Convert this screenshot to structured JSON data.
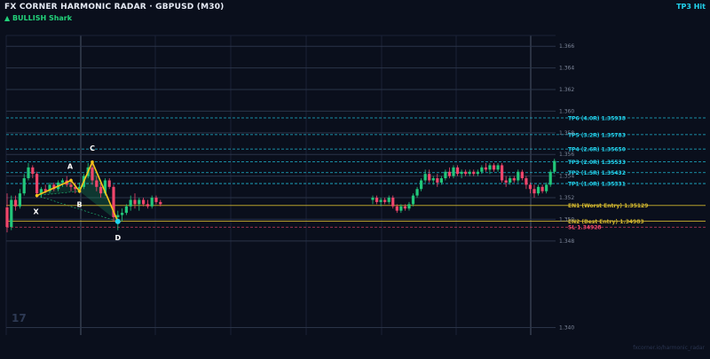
{
  "header": {
    "title": "FX CORNER HARMONIC RADAR  ·  GBPUSD (M30)",
    "pattern": "▲ BULLISH  Shark",
    "status": "TP3 Hit"
  },
  "watermark": "17",
  "footer": "fxcorner.io/harmonic_radar",
  "colors": {
    "background": "#0a0f1c",
    "bull": "#22c77a",
    "bear": "#f0456b",
    "pattern": "#f5c518",
    "tp": "#22d3ee",
    "entry": "#d4b82e",
    "sl": "#f0456b"
  },
  "chart_data": {
    "type": "candlestick",
    "symbol": "GBPUSD",
    "timeframe": "M30",
    "ylim": [
      1.3393,
      1.367
    ],
    "y_ticks": [
      "1.366",
      "1.364",
      "1.362",
      "1.360",
      "1.358",
      "1.356",
      "1.354",
      "1.352",
      "1.350",
      "1.348",
      "1.340"
    ],
    "levels": [
      {
        "label": "TP6 (4.0R)  1.35938",
        "value": 1.35938,
        "kind": "tp"
      },
      {
        "label": "TP5 (3.2R)  1.35783",
        "value": 1.35783,
        "kind": "tp"
      },
      {
        "label": "TP4 (2.6R)  1.35650",
        "value": 1.3565,
        "kind": "tp"
      },
      {
        "label": "TP3 (2.0R)  1.35533",
        "value": 1.35533,
        "kind": "tp"
      },
      {
        "label": "TP2 (1.5R)  1.35432",
        "value": 1.35432,
        "kind": "tp"
      },
      {
        "label": "TP1 (1.0R)  1.35331",
        "value": 1.35331,
        "kind": "tp"
      },
      {
        "label": "EN1 (Worst Entry)  1.35129",
        "value": 1.35129,
        "kind": "entry"
      },
      {
        "label": "EN2 (Best Entry)  1.34983",
        "value": 1.34983,
        "kind": "entry"
      },
      {
        "label": "SL  1.34928",
        "value": 1.34928,
        "kind": "sl"
      }
    ],
    "pattern_points": [
      {
        "label": "X",
        "index": 7,
        "value": 1.3522
      },
      {
        "label": "A",
        "index": 15,
        "value": 1.3536
      },
      {
        "label": "B",
        "index": 17,
        "value": 1.3526
      },
      {
        "label": "C",
        "index": 20,
        "value": 1.3553
      },
      {
        "label": "D",
        "index": 26,
        "value": 1.3498
      }
    ],
    "candles": [
      {
        "i": 0,
        "o": 1.3511,
        "h": 1.3524,
        "l": 1.3488,
        "c": 1.3493
      },
      {
        "i": 1,
        "o": 1.3493,
        "h": 1.3522,
        "l": 1.349,
        "c": 1.3518
      },
      {
        "i": 2,
        "o": 1.3518,
        "h": 1.3522,
        "l": 1.3508,
        "c": 1.3512
      },
      {
        "i": 3,
        "o": 1.3512,
        "h": 1.3528,
        "l": 1.351,
        "c": 1.3524
      },
      {
        "i": 4,
        "o": 1.3524,
        "h": 1.3542,
        "l": 1.3522,
        "c": 1.3538
      },
      {
        "i": 5,
        "o": 1.3538,
        "h": 1.3552,
        "l": 1.3536,
        "c": 1.3548
      },
      {
        "i": 6,
        "o": 1.3548,
        "h": 1.355,
        "l": 1.3538,
        "c": 1.3542
      },
      {
        "i": 7,
        "o": 1.3542,
        "h": 1.3544,
        "l": 1.352,
        "c": 1.3524
      },
      {
        "i": 8,
        "o": 1.3524,
        "h": 1.353,
        "l": 1.352,
        "c": 1.3528
      },
      {
        "i": 9,
        "o": 1.3528,
        "h": 1.3532,
        "l": 1.3524,
        "c": 1.3526
      },
      {
        "i": 10,
        "o": 1.3526,
        "h": 1.3534,
        "l": 1.3524,
        "c": 1.3532
      },
      {
        "i": 11,
        "o": 1.3532,
        "h": 1.3534,
        "l": 1.3526,
        "c": 1.3528
      },
      {
        "i": 12,
        "o": 1.3528,
        "h": 1.3536,
        "l": 1.3526,
        "c": 1.3534
      },
      {
        "i": 13,
        "o": 1.3534,
        "h": 1.3538,
        "l": 1.353,
        "c": 1.3536
      },
      {
        "i": 14,
        "o": 1.3536,
        "h": 1.354,
        "l": 1.353,
        "c": 1.3532
      },
      {
        "i": 15,
        "o": 1.3532,
        "h": 1.3538,
        "l": 1.3526,
        "c": 1.353
      },
      {
        "i": 16,
        "o": 1.353,
        "h": 1.3534,
        "l": 1.3524,
        "c": 1.3528
      },
      {
        "i": 17,
        "o": 1.3528,
        "h": 1.3534,
        "l": 1.3524,
        "c": 1.353
      },
      {
        "i": 18,
        "o": 1.353,
        "h": 1.3542,
        "l": 1.3528,
        "c": 1.354
      },
      {
        "i": 19,
        "o": 1.354,
        "h": 1.3552,
        "l": 1.3538,
        "c": 1.3548
      },
      {
        "i": 20,
        "o": 1.3548,
        "h": 1.3554,
        "l": 1.3532,
        "c": 1.3536
      },
      {
        "i": 21,
        "o": 1.3536,
        "h": 1.354,
        "l": 1.3526,
        "c": 1.353
      },
      {
        "i": 22,
        "o": 1.353,
        "h": 1.3534,
        "l": 1.352,
        "c": 1.3524
      },
      {
        "i": 23,
        "o": 1.3524,
        "h": 1.3538,
        "l": 1.3522,
        "c": 1.3536
      },
      {
        "i": 24,
        "o": 1.3536,
        "h": 1.3538,
        "l": 1.3528,
        "c": 1.353
      },
      {
        "i": 25,
        "o": 1.353,
        "h": 1.3532,
        "l": 1.3498,
        "c": 1.3502
      },
      {
        "i": 26,
        "o": 1.3502,
        "h": 1.3508,
        "l": 1.349,
        "c": 1.3504
      },
      {
        "i": 27,
        "o": 1.3504,
        "h": 1.351,
        "l": 1.3498,
        "c": 1.3506
      },
      {
        "i": 28,
        "o": 1.3506,
        "h": 1.3514,
        "l": 1.3504,
        "c": 1.3512
      },
      {
        "i": 29,
        "o": 1.3512,
        "h": 1.3522,
        "l": 1.3508,
        "c": 1.3518
      },
      {
        "i": 30,
        "o": 1.3518,
        "h": 1.3524,
        "l": 1.351,
        "c": 1.3514
      },
      {
        "i": 31,
        "o": 1.3514,
        "h": 1.352,
        "l": 1.3508,
        "c": 1.3518
      },
      {
        "i": 32,
        "o": 1.3518,
        "h": 1.352,
        "l": 1.3512,
        "c": 1.3514
      },
      {
        "i": 33,
        "o": 1.3514,
        "h": 1.3518,
        "l": 1.351,
        "c": 1.3512
      },
      {
        "i": 34,
        "o": 1.3512,
        "h": 1.3522,
        "l": 1.351,
        "c": 1.352
      },
      {
        "i": 35,
        "o": 1.352,
        "h": 1.3522,
        "l": 1.3514,
        "c": 1.3516
      },
      {
        "i": 36,
        "o": 1.3516,
        "h": 1.3518,
        "l": 1.3512,
        "c": 1.3514
      },
      {
        "i": 100,
        "o": 1.3518,
        "h": 1.3522,
        "l": 1.3514,
        "c": 1.352
      },
      {
        "i": 101,
        "o": 1.352,
        "h": 1.3522,
        "l": 1.3514,
        "c": 1.3516
      },
      {
        "i": 102,
        "o": 1.3516,
        "h": 1.352,
        "l": 1.3512,
        "c": 1.3518
      },
      {
        "i": 103,
        "o": 1.3518,
        "h": 1.352,
        "l": 1.3514,
        "c": 1.3516
      },
      {
        "i": 104,
        "o": 1.3516,
        "h": 1.3522,
        "l": 1.3514,
        "c": 1.352
      },
      {
        "i": 105,
        "o": 1.352,
        "h": 1.3522,
        "l": 1.351,
        "c": 1.3512
      },
      {
        "i": 106,
        "o": 1.3512,
        "h": 1.3514,
        "l": 1.3506,
        "c": 1.3508
      },
      {
        "i": 107,
        "o": 1.3508,
        "h": 1.3514,
        "l": 1.3506,
        "c": 1.3512
      },
      {
        "i": 108,
        "o": 1.3512,
        "h": 1.3514,
        "l": 1.3508,
        "c": 1.351
      },
      {
        "i": 109,
        "o": 1.351,
        "h": 1.3516,
        "l": 1.3508,
        "c": 1.3514
      },
      {
        "i": 110,
        "o": 1.3514,
        "h": 1.3524,
        "l": 1.3512,
        "c": 1.3522
      },
      {
        "i": 111,
        "o": 1.3522,
        "h": 1.353,
        "l": 1.352,
        "c": 1.3528
      },
      {
        "i": 112,
        "o": 1.3528,
        "h": 1.3538,
        "l": 1.3526,
        "c": 1.3536
      },
      {
        "i": 113,
        "o": 1.3536,
        "h": 1.3546,
        "l": 1.3534,
        "c": 1.3542
      },
      {
        "i": 114,
        "o": 1.3542,
        "h": 1.3546,
        "l": 1.3534,
        "c": 1.3536
      },
      {
        "i": 115,
        "o": 1.3536,
        "h": 1.354,
        "l": 1.3532,
        "c": 1.3538
      },
      {
        "i": 116,
        "o": 1.3538,
        "h": 1.3542,
        "l": 1.353,
        "c": 1.3534
      },
      {
        "i": 117,
        "o": 1.3534,
        "h": 1.354,
        "l": 1.3532,
        "c": 1.3538
      },
      {
        "i": 118,
        "o": 1.3538,
        "h": 1.3546,
        "l": 1.3536,
        "c": 1.3544
      },
      {
        "i": 119,
        "o": 1.3544,
        "h": 1.3548,
        "l": 1.3538,
        "c": 1.354
      },
      {
        "i": 120,
        "o": 1.354,
        "h": 1.355,
        "l": 1.3538,
        "c": 1.3548
      },
      {
        "i": 121,
        "o": 1.3548,
        "h": 1.355,
        "l": 1.354,
        "c": 1.3542
      },
      {
        "i": 122,
        "o": 1.3542,
        "h": 1.3546,
        "l": 1.3538,
        "c": 1.3544
      },
      {
        "i": 123,
        "o": 1.3544,
        "h": 1.3546,
        "l": 1.354,
        "c": 1.3542
      },
      {
        "i": 124,
        "o": 1.3542,
        "h": 1.3546,
        "l": 1.354,
        "c": 1.3544
      },
      {
        "i": 125,
        "o": 1.3544,
        "h": 1.3546,
        "l": 1.354,
        "c": 1.3542
      },
      {
        "i": 126,
        "o": 1.3542,
        "h": 1.3546,
        "l": 1.354,
        "c": 1.3544
      },
      {
        "i": 127,
        "o": 1.3544,
        "h": 1.355,
        "l": 1.3542,
        "c": 1.3548
      },
      {
        "i": 128,
        "o": 1.3548,
        "h": 1.3552,
        "l": 1.3544,
        "c": 1.3546
      },
      {
        "i": 129,
        "o": 1.3546,
        "h": 1.3552,
        "l": 1.3542,
        "c": 1.355
      },
      {
        "i": 130,
        "o": 1.355,
        "h": 1.3552,
        "l": 1.3544,
        "c": 1.3546
      },
      {
        "i": 131,
        "o": 1.3546,
        "h": 1.3552,
        "l": 1.3544,
        "c": 1.355
      },
      {
        "i": 132,
        "o": 1.355,
        "h": 1.3552,
        "l": 1.3534,
        "c": 1.3536
      },
      {
        "i": 133,
        "o": 1.3536,
        "h": 1.354,
        "l": 1.353,
        "c": 1.3534
      },
      {
        "i": 134,
        "o": 1.3534,
        "h": 1.354,
        "l": 1.3532,
        "c": 1.3538
      },
      {
        "i": 135,
        "o": 1.3538,
        "h": 1.354,
        "l": 1.3534,
        "c": 1.3536
      },
      {
        "i": 136,
        "o": 1.3536,
        "h": 1.3546,
        "l": 1.3534,
        "c": 1.3544
      },
      {
        "i": 137,
        "o": 1.3544,
        "h": 1.3546,
        "l": 1.3536,
        "c": 1.3538
      },
      {
        "i": 138,
        "o": 1.3538,
        "h": 1.354,
        "l": 1.3528,
        "c": 1.3532
      },
      {
        "i": 139,
        "o": 1.3532,
        "h": 1.3534,
        "l": 1.3524,
        "c": 1.3528
      },
      {
        "i": 140,
        "o": 1.3528,
        "h": 1.3532,
        "l": 1.352,
        "c": 1.3524
      },
      {
        "i": 141,
        "o": 1.3524,
        "h": 1.3532,
        "l": 1.3522,
        "c": 1.353
      },
      {
        "i": 142,
        "o": 1.353,
        "h": 1.3532,
        "l": 1.3524,
        "c": 1.3526
      },
      {
        "i": 143,
        "o": 1.3526,
        "h": 1.3534,
        "l": 1.3524,
        "c": 1.3532
      },
      {
        "i": 144,
        "o": 1.3532,
        "h": 1.3546,
        "l": 1.353,
        "c": 1.3544
      },
      {
        "i": 145,
        "o": 1.3544,
        "h": 1.3556,
        "l": 1.3542,
        "c": 1.3554
      }
    ]
  }
}
